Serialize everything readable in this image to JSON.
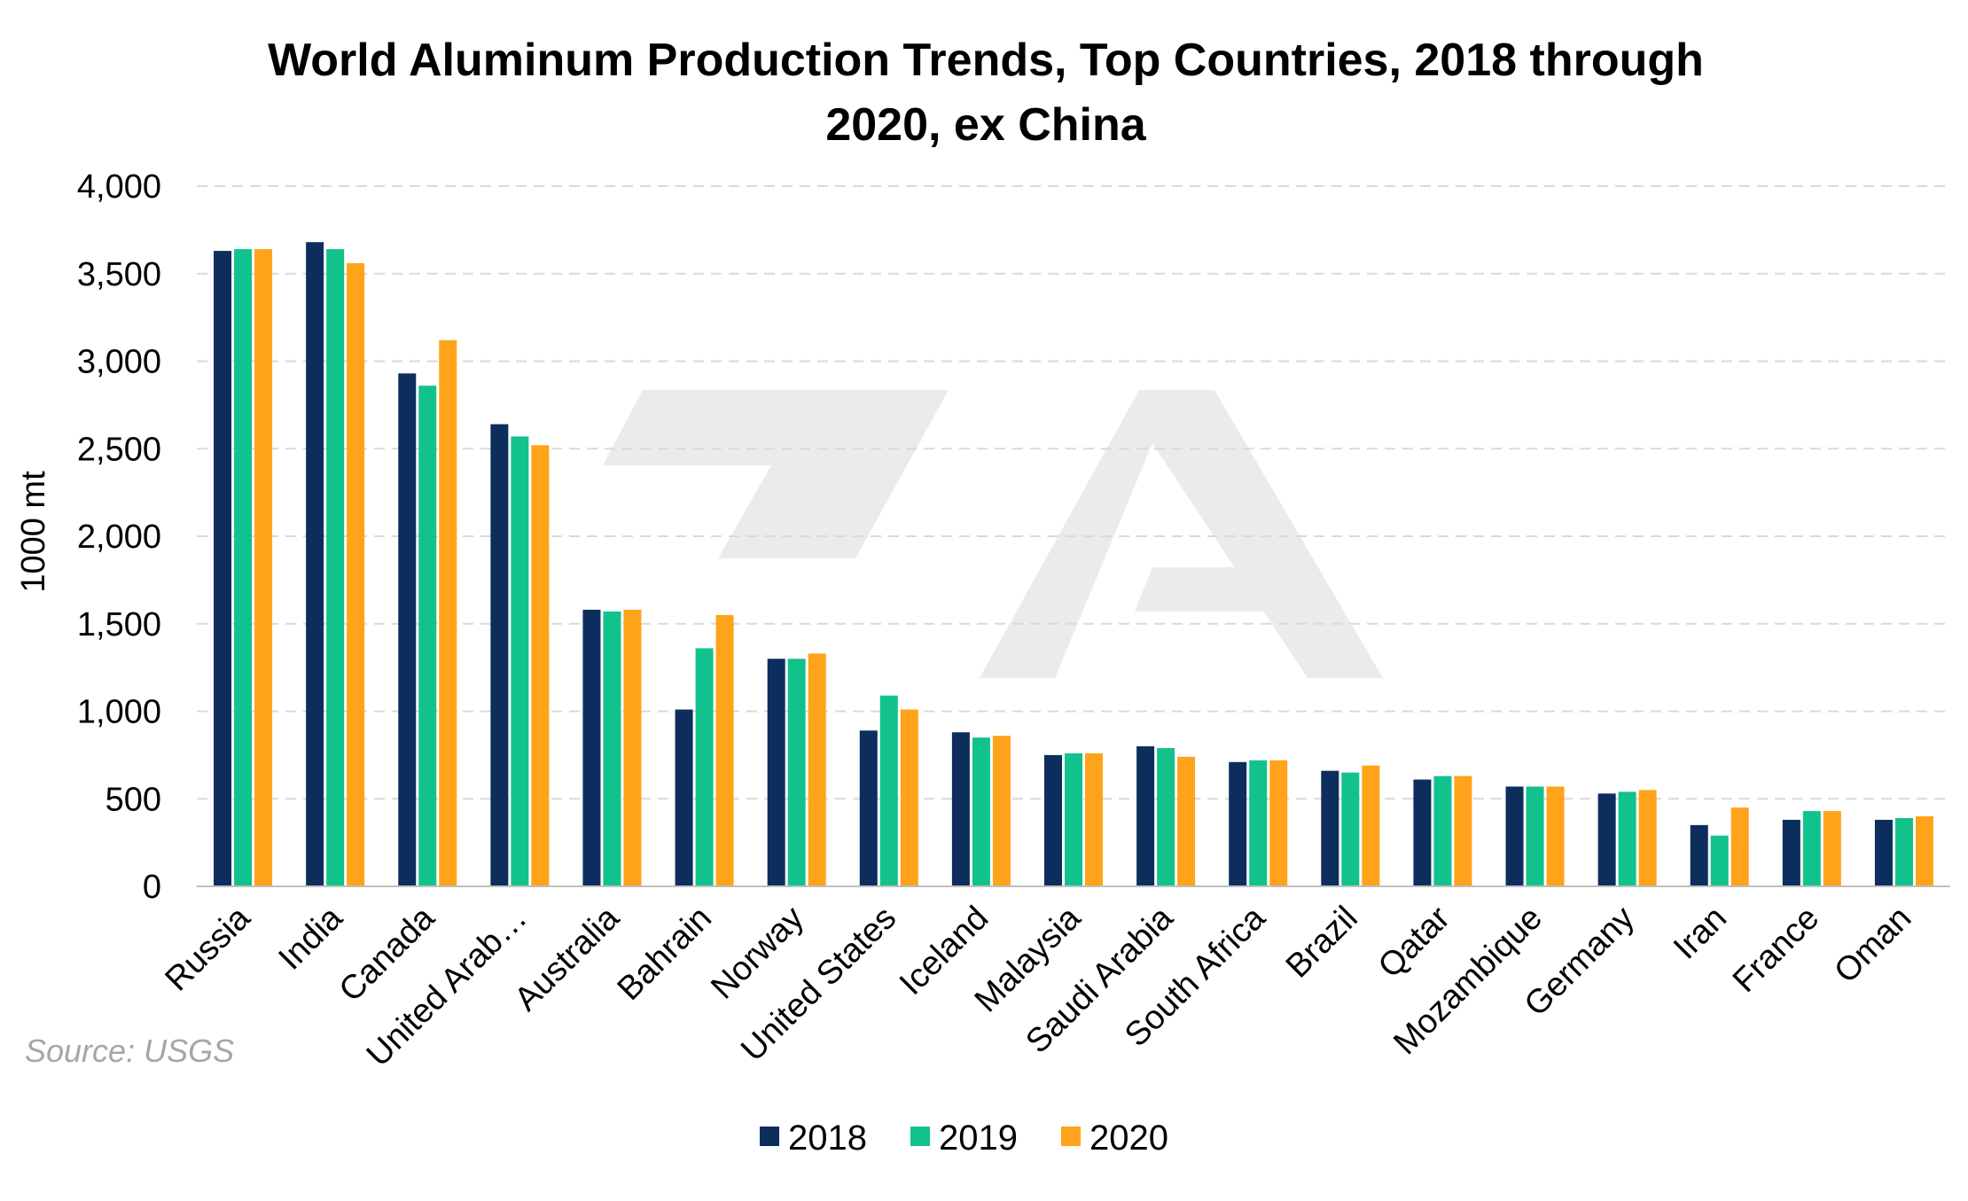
{
  "chart_data": {
    "type": "bar",
    "title_lines": [
      "World Aluminum Production Trends, Top Countries, 2018 through",
      "2020, ex China"
    ],
    "ylabel": "1000 mt",
    "xlabel": "",
    "ylim": [
      0,
      4000
    ],
    "yticks": [
      0,
      500,
      1000,
      1500,
      2000,
      2500,
      3000,
      3500,
      4000
    ],
    "ytick_labels": [
      "0",
      "500",
      "1,000",
      "1,500",
      "2,000",
      "2,500",
      "3,000",
      "3,500",
      "4,000"
    ],
    "grid": true,
    "legend_position": "bottom",
    "categories": [
      "Russia",
      "India",
      "Canada",
      "United Arab…",
      "Australia",
      "Bahrain",
      "Norway",
      "United States",
      "Iceland",
      "Malaysia",
      "Saudi Arabia",
      "South Africa",
      "Brazil",
      "Qatar",
      "Mozambique",
      "Germany",
      "Iran",
      "France",
      "Oman"
    ],
    "series": [
      {
        "name": "2018",
        "color": "#0d2d5c",
        "values": [
          3630,
          3680,
          2930,
          2640,
          1580,
          1010,
          1300,
          890,
          880,
          750,
          800,
          710,
          660,
          610,
          570,
          530,
          350,
          380,
          380
        ]
      },
      {
        "name": "2019",
        "color": "#12c28c",
        "values": [
          3640,
          3640,
          2860,
          2570,
          1570,
          1360,
          1300,
          1090,
          850,
          760,
          790,
          720,
          650,
          630,
          570,
          540,
          290,
          430,
          390
        ]
      },
      {
        "name": "2020",
        "color": "#ffa31a",
        "values": [
          3640,
          3560,
          3120,
          2520,
          1580,
          1550,
          1330,
          1010,
          860,
          760,
          740,
          720,
          690,
          630,
          570,
          550,
          450,
          430,
          400
        ]
      }
    ]
  },
  "source_note": "Source: USGS",
  "watermark": {
    "color": "#ebebeb",
    "logo_text": "7A"
  }
}
